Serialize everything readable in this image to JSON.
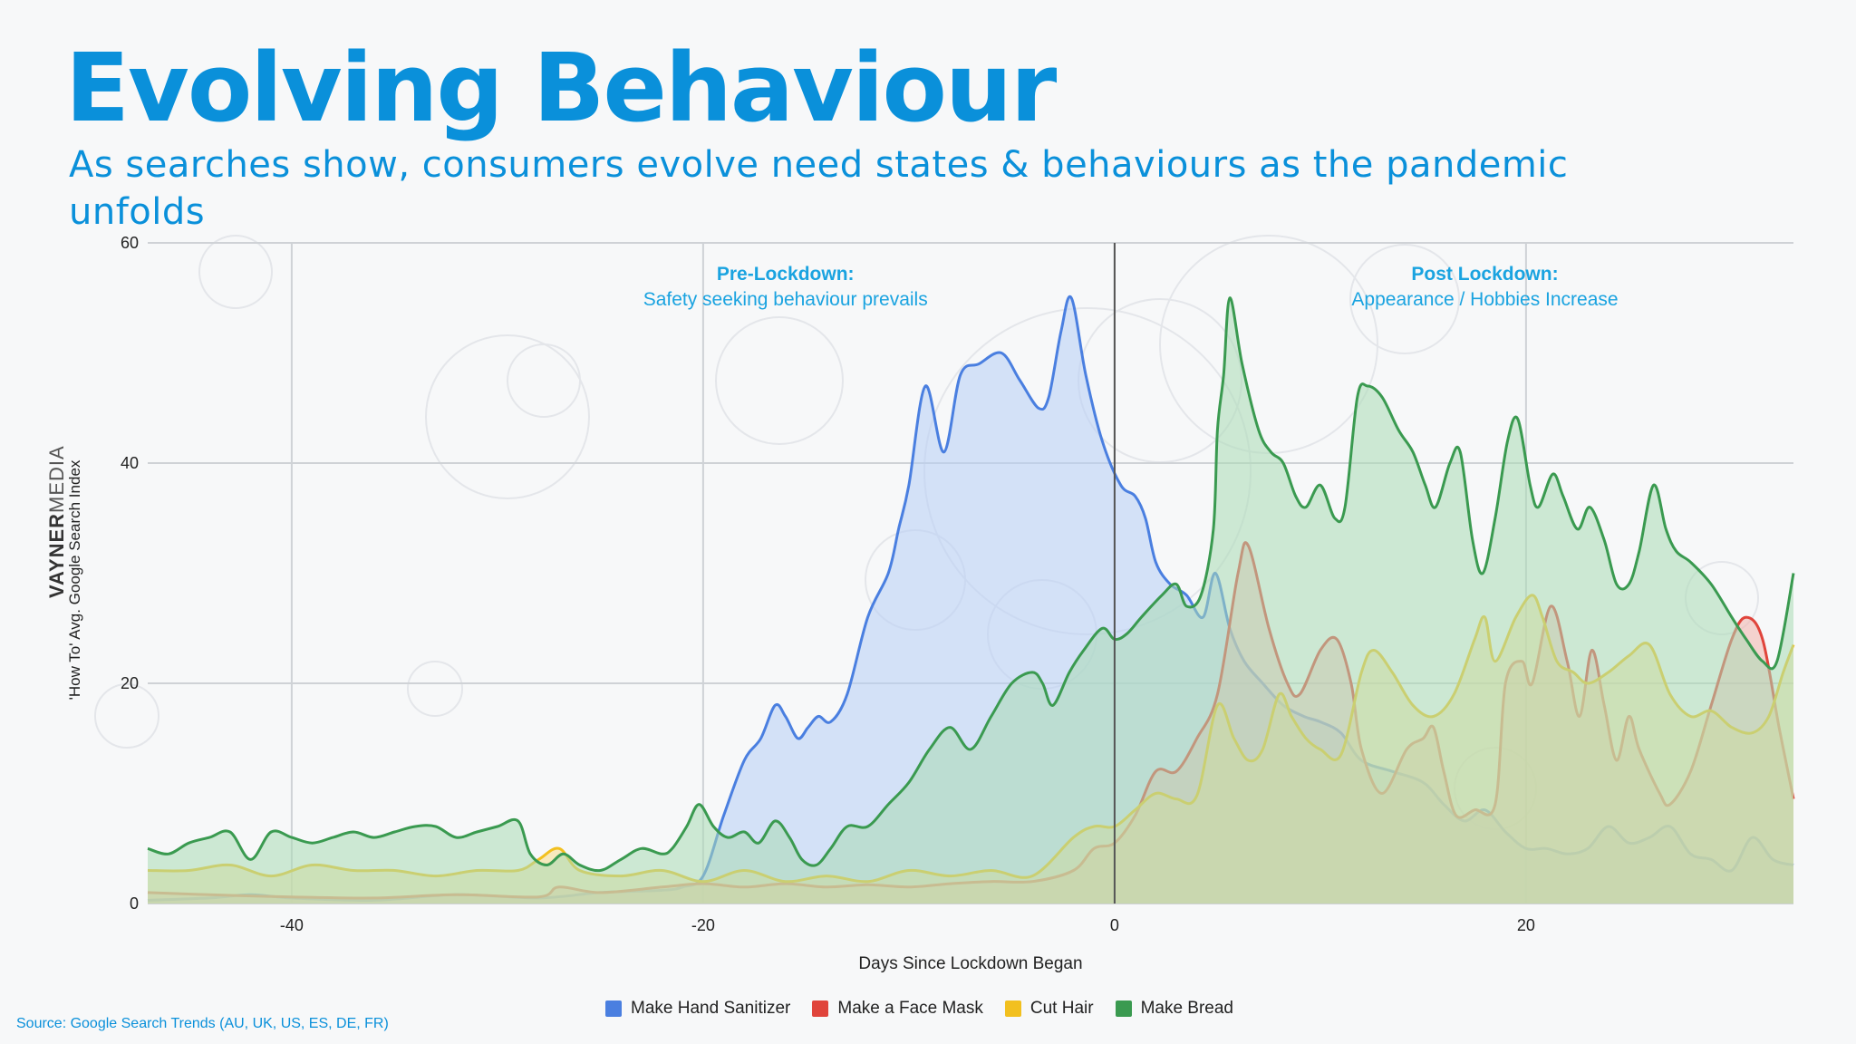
{
  "header": {
    "title": "Evolving Behaviour",
    "subtitle": "As searches show, consumers evolve need states & behaviours as the pandemic unfolds"
  },
  "brand": {
    "bold": "VAYNER",
    "light": "MEDIA"
  },
  "source": "Source: Google Search Trends (AU, UK, US, ES, DE, FR)",
  "annotations": [
    {
      "title": "Pre-Lockdown:",
      "text": "Safety seeking behaviour prevails",
      "x": -16
    },
    {
      "title": "Post Lockdown:",
      "text": "Appearance / Hobbies Increase",
      "x": 18
    }
  ],
  "chart_data": {
    "type": "area",
    "xlabel": "Days Since Lockdown Began",
    "ylabel": "'How To' Avg. Google Search Index",
    "xlim": [
      -47,
      33
    ],
    "ylim": [
      0,
      60
    ],
    "xticks": [
      -40,
      -20,
      0,
      20
    ],
    "yticks": [
      0,
      20,
      40,
      60
    ],
    "vline_x": 0,
    "series": [
      {
        "name": "Make Hand Sanitizer",
        "color": "#4a7fe0",
        "fill": "#b7cdf6",
        "points": [
          [
            -47,
            0.3
          ],
          [
            -44,
            0.5
          ],
          [
            -42,
            0.8
          ],
          [
            -40,
            0.5
          ],
          [
            -36,
            0.3
          ],
          [
            -32,
            0.8
          ],
          [
            -28,
            0.5
          ],
          [
            -25,
            1
          ],
          [
            -22,
            1.2
          ],
          [
            -21,
            1.5
          ],
          [
            -20,
            2.5
          ],
          [
            -19,
            8
          ],
          [
            -18,
            13
          ],
          [
            -17.2,
            15
          ],
          [
            -16.5,
            18
          ],
          [
            -16,
            17
          ],
          [
            -15.4,
            15
          ],
          [
            -14.9,
            16
          ],
          [
            -14.4,
            17
          ],
          [
            -13.8,
            16.5
          ],
          [
            -13,
            19
          ],
          [
            -12,
            26
          ],
          [
            -11,
            30
          ],
          [
            -10.5,
            34
          ],
          [
            -10,
            38
          ],
          [
            -9.2,
            47
          ],
          [
            -8.3,
            41
          ],
          [
            -7.5,
            48
          ],
          [
            -6.6,
            49
          ],
          [
            -5.5,
            50
          ],
          [
            -4.6,
            47.5
          ],
          [
            -3.7,
            45
          ],
          [
            -3.2,
            46
          ],
          [
            -2.6,
            52
          ],
          [
            -2.1,
            55
          ],
          [
            -1.4,
            48
          ],
          [
            -0.6,
            42
          ],
          [
            0.3,
            38
          ],
          [
            1,
            37
          ],
          [
            1.5,
            35
          ],
          [
            2,
            31
          ],
          [
            2.7,
            29
          ],
          [
            3.5,
            28
          ],
          [
            4.3,
            26
          ],
          [
            4.9,
            30
          ],
          [
            5.6,
            25
          ],
          [
            6.3,
            22
          ],
          [
            7.2,
            20
          ],
          [
            8.2,
            18
          ],
          [
            9.2,
            17
          ],
          [
            10,
            16.5
          ],
          [
            11,
            15.5
          ],
          [
            12,
            13
          ],
          [
            13.5,
            12
          ],
          [
            15,
            11
          ],
          [
            16,
            9
          ],
          [
            17,
            7.5
          ],
          [
            18,
            8.5
          ],
          [
            19,
            6.5
          ],
          [
            20,
            5
          ],
          [
            21,
            5
          ],
          [
            22,
            4.5
          ],
          [
            23,
            5
          ],
          [
            24,
            7
          ],
          [
            25,
            5.5
          ],
          [
            26,
            6
          ],
          [
            27,
            7
          ],
          [
            28,
            4.5
          ],
          [
            29,
            4
          ],
          [
            30,
            3
          ],
          [
            31,
            6
          ],
          [
            32,
            4
          ],
          [
            33,
            3.5
          ]
        ]
      },
      {
        "name": "Make a Face Mask",
        "color": "#e0443b",
        "fill": "#f2b2ab",
        "points": [
          [
            -47,
            1
          ],
          [
            -44,
            0.8
          ],
          [
            -40,
            0.6
          ],
          [
            -36,
            0.5
          ],
          [
            -32,
            0.8
          ],
          [
            -28,
            0.6
          ],
          [
            -27,
            1.5
          ],
          [
            -25,
            1
          ],
          [
            -22,
            1.5
          ],
          [
            -20,
            1.8
          ],
          [
            -18,
            1.5
          ],
          [
            -16,
            1.8
          ],
          [
            -14,
            1.5
          ],
          [
            -12,
            1.7
          ],
          [
            -10,
            1.5
          ],
          [
            -8,
            1.8
          ],
          [
            -6,
            2
          ],
          [
            -4,
            2
          ],
          [
            -2,
            3
          ],
          [
            -1,
            5
          ],
          [
            0,
            5.5
          ],
          [
            1,
            8
          ],
          [
            2,
            12
          ],
          [
            3,
            12
          ],
          [
            4,
            15
          ],
          [
            5,
            19
          ],
          [
            6,
            30
          ],
          [
            6.5,
            32.5
          ],
          [
            7.5,
            25
          ],
          [
            8.4,
            20
          ],
          [
            9,
            19
          ],
          [
            10,
            23
          ],
          [
            10.8,
            24
          ],
          [
            11.5,
            20
          ],
          [
            12,
            14
          ],
          [
            13,
            10
          ],
          [
            14.2,
            14
          ],
          [
            15,
            15
          ],
          [
            15.5,
            16
          ],
          [
            16,
            12
          ],
          [
            16.6,
            8
          ],
          [
            17.5,
            8.5
          ],
          [
            18.5,
            9
          ],
          [
            19,
            20
          ],
          [
            19.8,
            22
          ],
          [
            20.3,
            20
          ],
          [
            21.2,
            27
          ],
          [
            22,
            22
          ],
          [
            22.6,
            17
          ],
          [
            23.2,
            23
          ],
          [
            23.8,
            18
          ],
          [
            24.4,
            13
          ],
          [
            25,
            17
          ],
          [
            25.5,
            14
          ],
          [
            26.5,
            10
          ],
          [
            27,
            9
          ],
          [
            28,
            12
          ],
          [
            29,
            18
          ],
          [
            30,
            24
          ],
          [
            30.7,
            26
          ],
          [
            31.5,
            24
          ],
          [
            32.3,
            16
          ],
          [
            33,
            9.5
          ]
        ]
      },
      {
        "name": "Cut Hair",
        "color": "#f2c01f",
        "fill": "#f7dc8c",
        "points": [
          [
            -47,
            3
          ],
          [
            -45,
            3
          ],
          [
            -43,
            3.5
          ],
          [
            -41,
            2.5
          ],
          [
            -39,
            3.5
          ],
          [
            -37,
            3
          ],
          [
            -35,
            3
          ],
          [
            -33,
            2.5
          ],
          [
            -31,
            3
          ],
          [
            -29,
            3
          ],
          [
            -28,
            4
          ],
          [
            -27,
            5
          ],
          [
            -26,
            3
          ],
          [
            -24,
            2.5
          ],
          [
            -22,
            3
          ],
          [
            -20,
            2
          ],
          [
            -18,
            3
          ],
          [
            -16,
            2
          ],
          [
            -14,
            2.5
          ],
          [
            -12,
            2
          ],
          [
            -10,
            3
          ],
          [
            -8,
            2.5
          ],
          [
            -6,
            3
          ],
          [
            -4,
            2.5
          ],
          [
            -2,
            6
          ],
          [
            -1,
            7
          ],
          [
            0,
            7
          ],
          [
            1,
            8.5
          ],
          [
            2,
            10
          ],
          [
            3,
            9.5
          ],
          [
            4,
            9.8
          ],
          [
            5,
            18
          ],
          [
            5.8,
            15
          ],
          [
            6.5,
            13
          ],
          [
            7.2,
            14
          ],
          [
            8,
            19
          ],
          [
            8.6,
            17
          ],
          [
            9.3,
            15
          ],
          [
            10,
            14
          ],
          [
            11,
            13.5
          ],
          [
            12,
            21
          ],
          [
            12.6,
            23
          ],
          [
            13.5,
            21
          ],
          [
            14.5,
            18
          ],
          [
            15.5,
            17
          ],
          [
            16.5,
            19
          ],
          [
            17.5,
            24
          ],
          [
            18,
            26
          ],
          [
            18.5,
            22
          ],
          [
            19.5,
            26
          ],
          [
            20.3,
            28
          ],
          [
            20.8,
            26
          ],
          [
            21.5,
            22
          ],
          [
            22.3,
            21
          ],
          [
            23,
            20
          ],
          [
            24,
            21
          ],
          [
            25,
            22.5
          ],
          [
            26,
            23.5
          ],
          [
            27,
            19
          ],
          [
            28,
            17
          ],
          [
            29,
            17.5
          ],
          [
            30,
            16
          ],
          [
            31,
            15.5
          ],
          [
            31.8,
            17
          ],
          [
            32.5,
            21
          ],
          [
            33,
            23.5
          ]
        ]
      },
      {
        "name": "Make Bread",
        "color": "#3a9a50",
        "fill": "#a9dbb4",
        "points": [
          [
            -47,
            5
          ],
          [
            -46,
            4.5
          ],
          [
            -45,
            5.5
          ],
          [
            -44,
            6
          ],
          [
            -43,
            6.5
          ],
          [
            -42,
            4
          ],
          [
            -41,
            6.5
          ],
          [
            -40,
            6
          ],
          [
            -39,
            5.5
          ],
          [
            -38,
            6
          ],
          [
            -37,
            6.5
          ],
          [
            -36,
            6
          ],
          [
            -35,
            6.5
          ],
          [
            -34,
            7
          ],
          [
            -33,
            7
          ],
          [
            -32,
            6
          ],
          [
            -31,
            6.5
          ],
          [
            -30,
            7
          ],
          [
            -29,
            7.5
          ],
          [
            -28.4,
            4.5
          ],
          [
            -27.6,
            3.5
          ],
          [
            -26.8,
            4.5
          ],
          [
            -26,
            3.5
          ],
          [
            -25,
            3
          ],
          [
            -24,
            4
          ],
          [
            -23,
            5
          ],
          [
            -22,
            4.5
          ],
          [
            -21.5,
            5
          ],
          [
            -20.8,
            7
          ],
          [
            -20.2,
            9
          ],
          [
            -19.5,
            7
          ],
          [
            -18.8,
            6
          ],
          [
            -18,
            6.5
          ],
          [
            -17.3,
            5.5
          ],
          [
            -16.5,
            7.5
          ],
          [
            -15.8,
            6
          ],
          [
            -15.2,
            4
          ],
          [
            -14.5,
            3.5
          ],
          [
            -13.8,
            5
          ],
          [
            -13,
            7
          ],
          [
            -12,
            7
          ],
          [
            -11,
            9
          ],
          [
            -10,
            11
          ],
          [
            -9,
            14
          ],
          [
            -8,
            16
          ],
          [
            -7,
            14
          ],
          [
            -6,
            17
          ],
          [
            -5,
            20
          ],
          [
            -4,
            21
          ],
          [
            -3.5,
            20
          ],
          [
            -3,
            18
          ],
          [
            -2.2,
            21
          ],
          [
            -1.5,
            23
          ],
          [
            -0.6,
            25
          ],
          [
            0,
            24
          ],
          [
            0.6,
            24.5
          ],
          [
            1.3,
            26
          ],
          [
            2.3,
            28
          ],
          [
            3,
            29
          ],
          [
            3.5,
            27
          ],
          [
            4.2,
            28
          ],
          [
            4.8,
            34
          ],
          [
            5,
            43
          ],
          [
            5.3,
            48
          ],
          [
            5.6,
            55
          ],
          [
            6.2,
            49
          ],
          [
            7,
            43
          ],
          [
            7.6,
            41
          ],
          [
            8.2,
            40
          ],
          [
            8.8,
            37
          ],
          [
            9.3,
            36
          ],
          [
            10,
            38
          ],
          [
            10.7,
            35
          ],
          [
            11.2,
            36
          ],
          [
            11.8,
            46
          ],
          [
            12.3,
            47
          ],
          [
            13,
            46
          ],
          [
            13.8,
            43
          ],
          [
            14.5,
            41
          ],
          [
            15.1,
            38
          ],
          [
            15.6,
            36
          ],
          [
            16.3,
            40
          ],
          [
            16.8,
            41
          ],
          [
            17.4,
            33
          ],
          [
            17.9,
            30
          ],
          [
            18.5,
            35
          ],
          [
            19.1,
            42
          ],
          [
            19.6,
            44
          ],
          [
            20.2,
            38
          ],
          [
            20.6,
            36
          ],
          [
            21.3,
            39
          ],
          [
            21.8,
            37
          ],
          [
            22.5,
            34
          ],
          [
            23.1,
            36
          ],
          [
            23.8,
            33
          ],
          [
            24.4,
            29
          ],
          [
            25,
            29
          ],
          [
            25.5,
            32
          ],
          [
            26.2,
            38
          ],
          [
            26.8,
            34
          ],
          [
            27.3,
            32
          ],
          [
            28,
            31
          ],
          [
            29,
            29
          ],
          [
            30,
            26
          ],
          [
            30.7,
            24
          ],
          [
            31.5,
            22
          ],
          [
            32.2,
            22
          ],
          [
            33,
            30
          ]
        ]
      }
    ]
  }
}
